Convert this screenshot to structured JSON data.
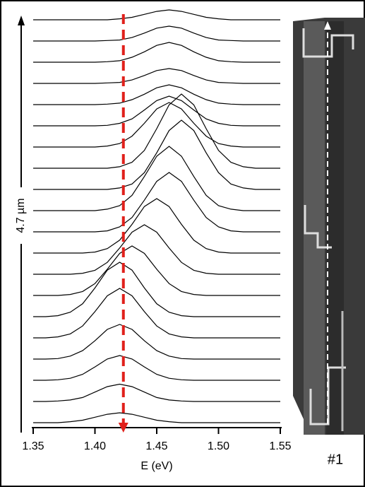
{
  "chart_data": {
    "type": "waterfall",
    "x": [
      1.35,
      1.36,
      1.37,
      1.38,
      1.39,
      1.4,
      1.41,
      1.42,
      1.43,
      1.44,
      1.45,
      1.46,
      1.47,
      1.48,
      1.49,
      1.5,
      1.51,
      1.52,
      1.53,
      1.54,
      1.55
    ],
    "xlim": [
      1.35,
      1.55
    ],
    "xticks": [
      1.35,
      {
        "value": 1.4,
        "label": "1.40"
      },
      1.45,
      {
        "value": 1.5,
        "label": "1.50"
      },
      1.55
    ],
    "xlabel": "E (eV)",
    "ylabel": "4.7 µm",
    "panel_label": "#1",
    "marker_x": 1.423,
    "marker_color": "#e0201b",
    "color": "#000000",
    "series": [
      {
        "values": [
          0,
          0,
          0,
          0.02,
          0.05,
          0.11,
          0.17,
          0.2,
          0.17,
          0.11,
          0.05,
          0.02,
          0,
          0,
          0,
          0,
          0,
          0,
          0,
          0,
          0
        ]
      },
      {
        "values": [
          0,
          0,
          0.01,
          0.03,
          0.08,
          0.19,
          0.3,
          0.35,
          0.3,
          0.19,
          0.08,
          0.03,
          0.01,
          0,
          0,
          0,
          0,
          0,
          0,
          0,
          0
        ]
      },
      {
        "values": [
          0,
          0,
          0.01,
          0.04,
          0.12,
          0.27,
          0.43,
          0.5,
          0.43,
          0.27,
          0.12,
          0.04,
          0.01,
          0,
          0,
          0,
          0,
          0,
          0,
          0,
          0
        ]
      },
      {
        "values": [
          0,
          0,
          0.01,
          0.06,
          0.17,
          0.37,
          0.6,
          0.7,
          0.6,
          0.37,
          0.17,
          0.06,
          0.01,
          0,
          0,
          0,
          0,
          0,
          0,
          0,
          0
        ]
      },
      {
        "values": [
          0,
          0,
          0.02,
          0.08,
          0.24,
          0.53,
          0.85,
          1,
          0.85,
          0.53,
          0.24,
          0.08,
          0.02,
          0,
          0,
          0,
          0,
          0,
          0,
          0,
          0
        ]
      },
      {
        "values": [
          0,
          0,
          0.02,
          0.09,
          0.26,
          0.58,
          0.94,
          1.1,
          0.94,
          0.58,
          0.26,
          0.09,
          0.02,
          0,
          0,
          0,
          0,
          0,
          0,
          0,
          0
        ]
      },
      {
        "values": [
          0,
          0,
          0,
          0.02,
          0.08,
          0.24,
          0.53,
          0.85,
          1,
          0.85,
          0.53,
          0.24,
          0.08,
          0.02,
          0,
          0,
          0,
          0,
          0,
          0,
          0
        ]
      },
      {
        "values": [
          0,
          0,
          0,
          0,
          0.02,
          0.08,
          0.24,
          0.53,
          0.85,
          1,
          0.85,
          0.53,
          0.24,
          0.08,
          0.02,
          0,
          0,
          0,
          0,
          0,
          0
        ]
      },
      {
        "values": [
          0,
          0,
          0,
          0,
          0,
          0.02,
          0.09,
          0.26,
          0.58,
          0.94,
          1.1,
          0.94,
          0.58,
          0.26,
          0.09,
          0.02,
          0,
          0,
          0,
          0,
          0
        ]
      },
      {
        "values": [
          0,
          0,
          0,
          0,
          0,
          0,
          0.02,
          0.1,
          0.29,
          0.64,
          1.02,
          1.2,
          1.02,
          0.64,
          0.29,
          0.1,
          0.02,
          0,
          0,
          0,
          0
        ]
      },
      {
        "values": [
          0,
          0,
          0,
          0,
          0,
          0,
          0.03,
          0.1,
          0.31,
          0.69,
          1.1,
          1.3,
          1.1,
          0.69,
          0.31,
          0.1,
          0.03,
          0,
          0,
          0,
          0
        ]
      },
      {
        "values": [
          0,
          0,
          0,
          0,
          0,
          0,
          0,
          0.03,
          0.11,
          0.34,
          0.74,
          1.19,
          1.4,
          1.19,
          0.74,
          0.34,
          0.11,
          0.03,
          0,
          0,
          0
        ]
      },
      {
        "values": [
          0,
          0,
          0,
          0,
          0,
          0,
          0,
          0.03,
          0.12,
          0.36,
          0.8,
          1.28,
          1.5,
          1.28,
          0.8,
          0.36,
          0.12,
          0.03,
          0,
          0,
          0
        ]
      },
      {
        "values": [
          0,
          0,
          0,
          0,
          0,
          0,
          0.02,
          0.07,
          0.22,
          0.48,
          0.77,
          0.9,
          0.77,
          0.48,
          0.22,
          0.07,
          0.02,
          0,
          0,
          0,
          0
        ]
      },
      {
        "values": [
          0,
          0,
          0,
          0,
          0,
          0,
          0.01,
          0.05,
          0.14,
          0.32,
          0.51,
          0.6,
          0.51,
          0.32,
          0.14,
          0.05,
          0.01,
          0,
          0,
          0,
          0
        ]
      },
      {
        "values": [
          0,
          0,
          0,
          0,
          0,
          0,
          0.01,
          0.03,
          0.1,
          0.21,
          0.34,
          0.4,
          0.34,
          0.21,
          0.1,
          0.03,
          0.01,
          0,
          0,
          0,
          0
        ]
      },
      {
        "values": [
          0,
          0,
          0,
          0,
          0,
          0,
          0.01,
          0.02,
          0.07,
          0.16,
          0.26,
          0.3,
          0.26,
          0.16,
          0.07,
          0.02,
          0.01,
          0,
          0,
          0,
          0
        ]
      },
      {
        "values": [
          0,
          0,
          0,
          0,
          0,
          0,
          0.01,
          0.03,
          0.1,
          0.21,
          0.34,
          0.4,
          0.34,
          0.21,
          0.1,
          0.03,
          0.01,
          0,
          0,
          0,
          0
        ]
      },
      {
        "values": [
          0,
          0,
          0,
          0,
          0,
          0,
          0.01,
          0.02,
          0.07,
          0.16,
          0.26,
          0.3,
          0.26,
          0.16,
          0.07,
          0.02,
          0.01,
          0,
          0,
          0,
          0
        ]
      },
      {
        "values": [
          0,
          0,
          0,
          0,
          0,
          0,
          0,
          0.02,
          0.05,
          0.11,
          0.17,
          0.2,
          0.17,
          0.11,
          0.05,
          0.02,
          0,
          0,
          0,
          0,
          0
        ]
      }
    ]
  }
}
